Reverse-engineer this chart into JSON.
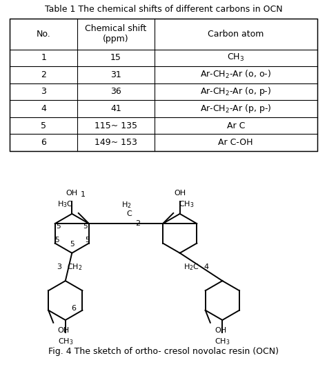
{
  "title": "Table 1 The chemical shifts of different carbons in OCN",
  "table_headers": [
    "No.",
    "Chemical shift\n(ppm)",
    "Carbon atom"
  ],
  "table_rows": [
    [
      "1",
      "15",
      "CH$_3$"
    ],
    [
      "2",
      "31",
      "Ar-CH$_2$-Ar (o, o-)"
    ],
    [
      "3",
      "36",
      "Ar-CH$_2$-Ar (o, p-)"
    ],
    [
      "4",
      "41",
      "Ar-CH$_2$-Ar (p, p-)"
    ],
    [
      "5",
      "115~ 135",
      "Ar C"
    ],
    [
      "6",
      "149~ 153",
      "Ar C-OH"
    ]
  ],
  "fig_caption": "Fig. 4 The sketch of ortho- cresol novolac resin (OCN)",
  "bg_color": "#ffffff",
  "text_color": "#000000",
  "line_color": "#000000",
  "font_size": 9,
  "title_font_size": 9
}
